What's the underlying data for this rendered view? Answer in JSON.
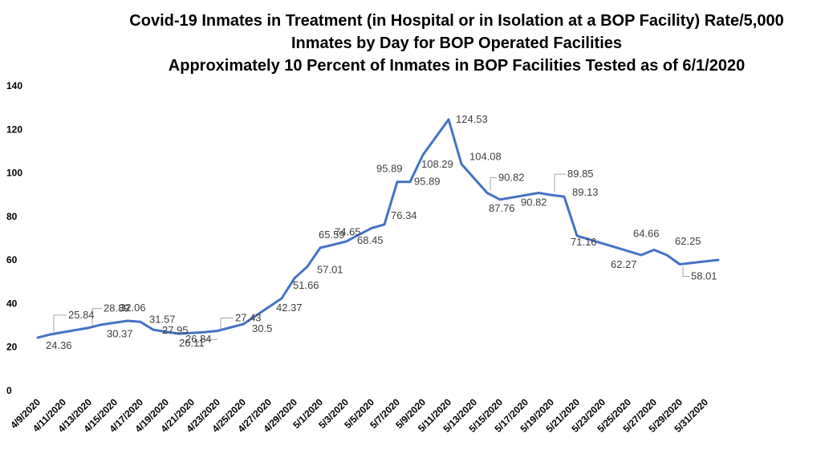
{
  "chart_data": {
    "type": "line",
    "title": [
      "Covid-19 Inmates in Treatment (in Hospital or in Isolation at a BOP Facility) Rate/5,000",
      "Inmates by Day for BOP Operated Facilities",
      "Approximately 10 Percent of Inmates in BOP Facilities Tested as of 6/1/2020"
    ],
    "xlabel": "",
    "ylabel": "",
    "ylim": [
      0,
      140
    ],
    "y_ticks": [
      "0",
      "20",
      "40",
      "60",
      "80",
      "100",
      "120",
      "140"
    ],
    "grid": false,
    "legend": "none",
    "x_ticks": [
      "4/9/2020",
      "4/11/2020",
      "4/13/2020",
      "4/15/2020",
      "4/17/2020",
      "4/19/2020",
      "4/21/2020",
      "4/23/2020",
      "4/25/2020",
      "4/27/2020",
      "4/29/2020",
      "5/1/2020",
      "5/3/2020",
      "5/5/2020",
      "5/7/2020",
      "5/9/2020",
      "5/11/2020",
      "5/13/2020",
      "5/15/2020",
      "5/17/2020",
      "5/19/2020",
      "5/21/2020",
      "5/23/2020",
      "5/25/2020",
      "5/27/2020",
      "5/29/2020",
      "5/31/2020"
    ],
    "points": [
      {
        "x": "4/9/2020",
        "y": 24.36,
        "label": "24.36"
      },
      {
        "x": "4/10/2020",
        "y": 25.84,
        "label": "25.84"
      },
      {
        "x": "4/13/2020",
        "y": 28.89,
        "label": "28.89"
      },
      {
        "x": "4/14/2020",
        "y": 30.37,
        "label": "30.37"
      },
      {
        "x": "4/16/2020",
        "y": 32.06,
        "label": "32.06"
      },
      {
        "x": "4/17/2020",
        "y": 31.57,
        "label": "31.57"
      },
      {
        "x": "4/18/2020",
        "y": 27.95,
        "label": "27.95"
      },
      {
        "x": "4/20/2020",
        "y": 26.11,
        "label": "26.11"
      },
      {
        "x": "4/22/2020",
        "y": 26.84,
        "label": "26.84"
      },
      {
        "x": "4/23/2020",
        "y": 27.43,
        "label": "27.43"
      },
      {
        "x": "4/25/2020",
        "y": 30.5,
        "label": "30.5"
      },
      {
        "x": "4/28/2020",
        "y": 42.37,
        "label": "42.37"
      },
      {
        "x": "4/29/2020",
        "y": 51.66,
        "label": "51.66"
      },
      {
        "x": "4/30/2020",
        "y": 57.01,
        "label": "57.01"
      },
      {
        "x": "5/1/2020",
        "y": 65.59,
        "label": "65.59"
      },
      {
        "x": "5/3/2020",
        "y": 68.45,
        "label": "68.45"
      },
      {
        "x": "5/5/2020",
        "y": 74.65,
        "label": "74.65"
      },
      {
        "x": "5/6/2020",
        "y": 76.34,
        "label": "76.34"
      },
      {
        "x": "5/7/2020",
        "y": 95.89,
        "label": "95.89"
      },
      {
        "x": "5/8/2020",
        "y": 95.89,
        "label": "95.89"
      },
      {
        "x": "5/9/2020",
        "y": 108.29,
        "label": "108.29"
      },
      {
        "x": "5/11/2020",
        "y": 124.53,
        "label": "124.53"
      },
      {
        "x": "5/12/2020",
        "y": 104.08,
        "label": "104.08"
      },
      {
        "x": "5/14/2020",
        "y": 90.82,
        "label": "90.82"
      },
      {
        "x": "5/15/2020",
        "y": 87.76,
        "label": "87.76"
      },
      {
        "x": "5/18/2020",
        "y": 90.82,
        "label": "90.82"
      },
      {
        "x": "5/19/2020",
        "y": 89.85,
        "label": "89.85"
      },
      {
        "x": "5/20/2020",
        "y": 89.13,
        "label": "89.13"
      },
      {
        "x": "5/21/2020",
        "y": 71.16,
        "label": "71.16"
      },
      {
        "x": "5/26/2020",
        "y": 62.27,
        "label": "62.27"
      },
      {
        "x": "5/27/2020",
        "y": 64.66,
        "label": "64.66"
      },
      {
        "x": "5/28/2020",
        "y": 62.25,
        "label": "62.25"
      },
      {
        "x": "5/29/2020",
        "y": 58.01,
        "label": "58.01"
      },
      {
        "x": "6/1/2020",
        "y": 60,
        "label": ""
      }
    ],
    "line_color": "#4472C4",
    "label_color": "#404040"
  }
}
